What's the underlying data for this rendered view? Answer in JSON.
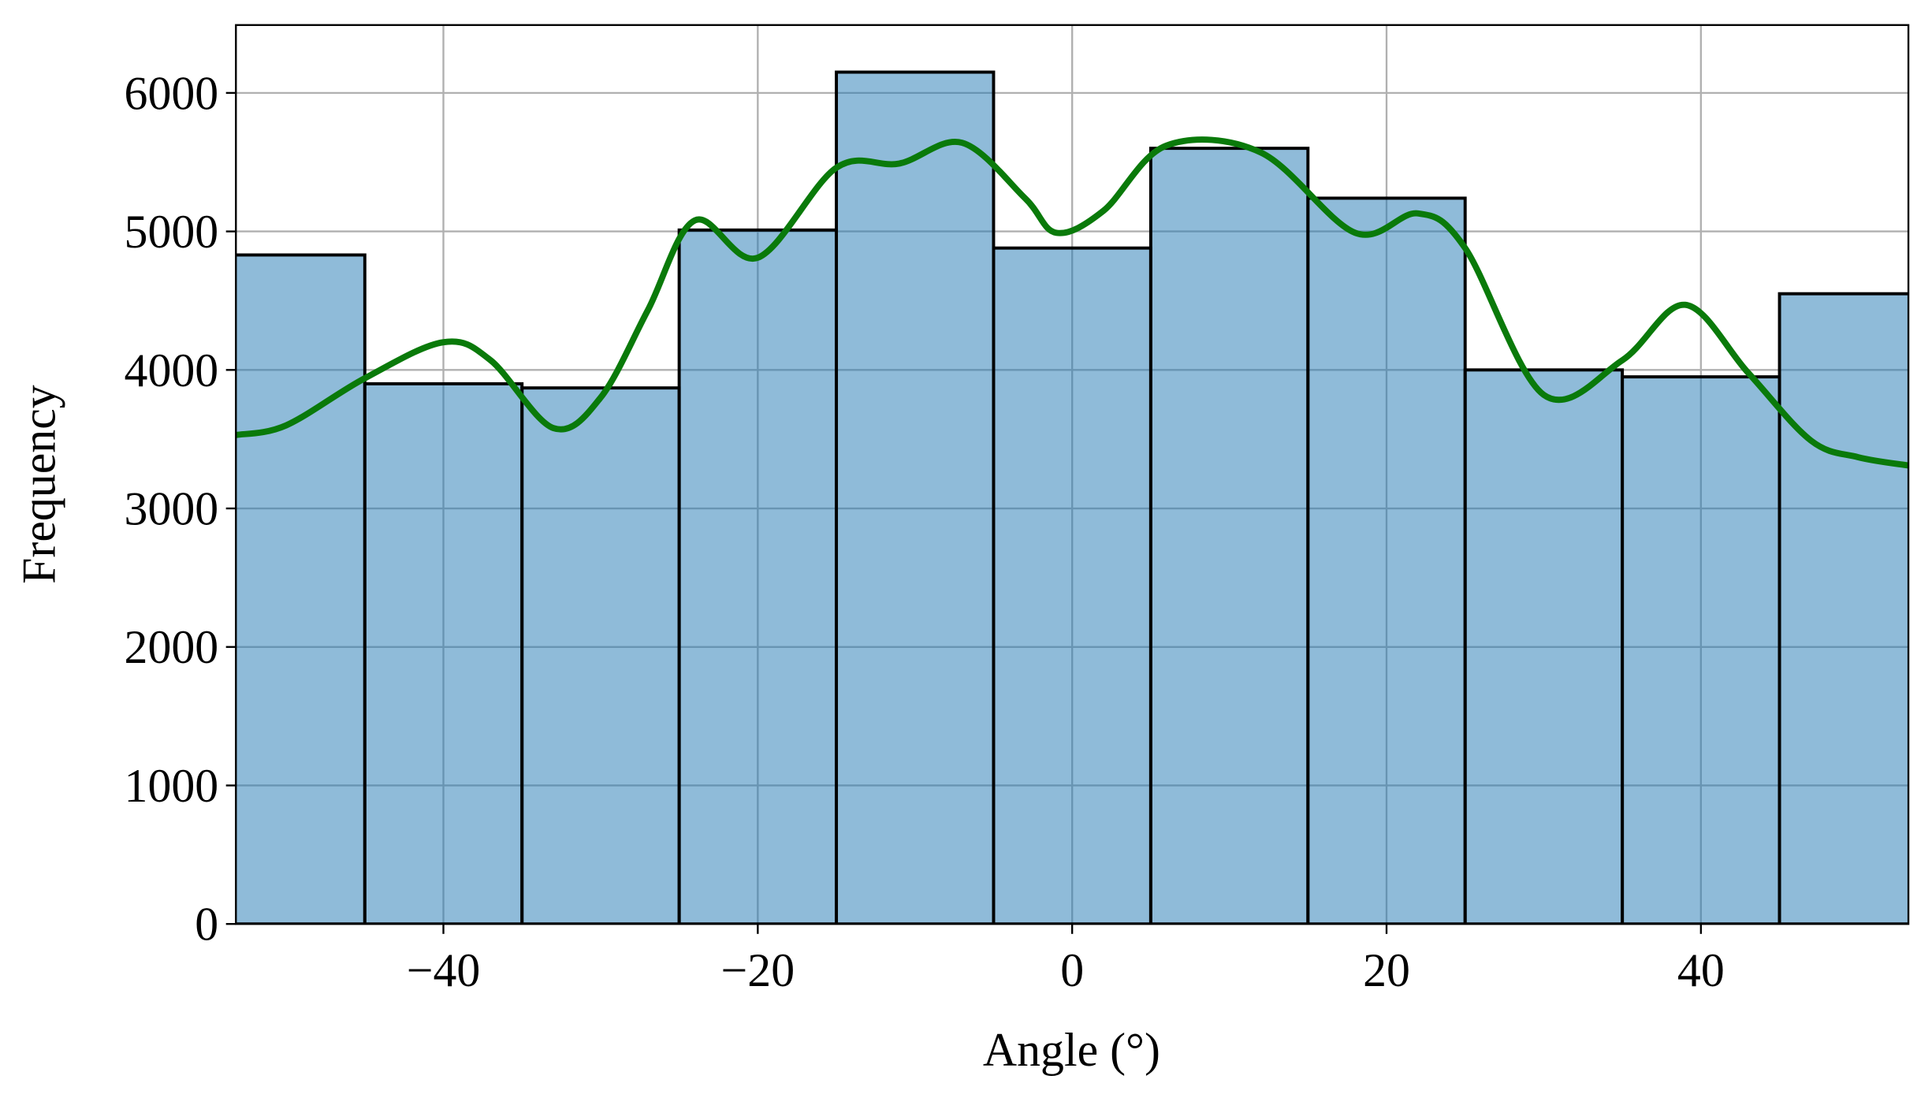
{
  "chart_data": {
    "type": "histogram",
    "xlabel": "Angle (°)",
    "ylabel": "Frequency",
    "bins": [
      -55,
      -45,
      -35,
      -25,
      -15,
      -5,
      5,
      15,
      25,
      35,
      45,
      55
    ],
    "values": [
      4830,
      3900,
      3870,
      5010,
      6150,
      4880,
      5600,
      5240,
      4000,
      3950,
      4550
    ],
    "color": "#1f77b4",
    "edgecolor": "#000000",
    "kde": {
      "color": "#0a7a0a",
      "x": [
        -53.2,
        -50,
        -45,
        -40,
        -37,
        -33,
        -30,
        -27,
        -24,
        -20,
        -15,
        -11,
        -7,
        -3,
        -1,
        2,
        6,
        12,
        18,
        22,
        25,
        30,
        35,
        39,
        43,
        47,
        50,
        53.2
      ],
      "values": [
        3530,
        3600,
        3940,
        4200,
        4070,
        3580,
        3800,
        4430,
        5080,
        4810,
        5460,
        5490,
        5640,
        5240,
        4990,
        5150,
        5620,
        5570,
        4990,
        5130,
        4880,
        3820,
        4070,
        4470,
        3980,
        3490,
        3370,
        3310
      ]
    },
    "xlim": [
      -53.2,
      53.2
    ],
    "ylim": [
      0,
      6490
    ],
    "xticks": [
      {
        "value": -40,
        "label": "−40"
      },
      {
        "value": -20,
        "label": "−20"
      },
      0,
      20,
      40
    ],
    "yticks": [
      0,
      1000,
      2000,
      3000,
      4000,
      5000,
      6000
    ],
    "grid": true
  }
}
